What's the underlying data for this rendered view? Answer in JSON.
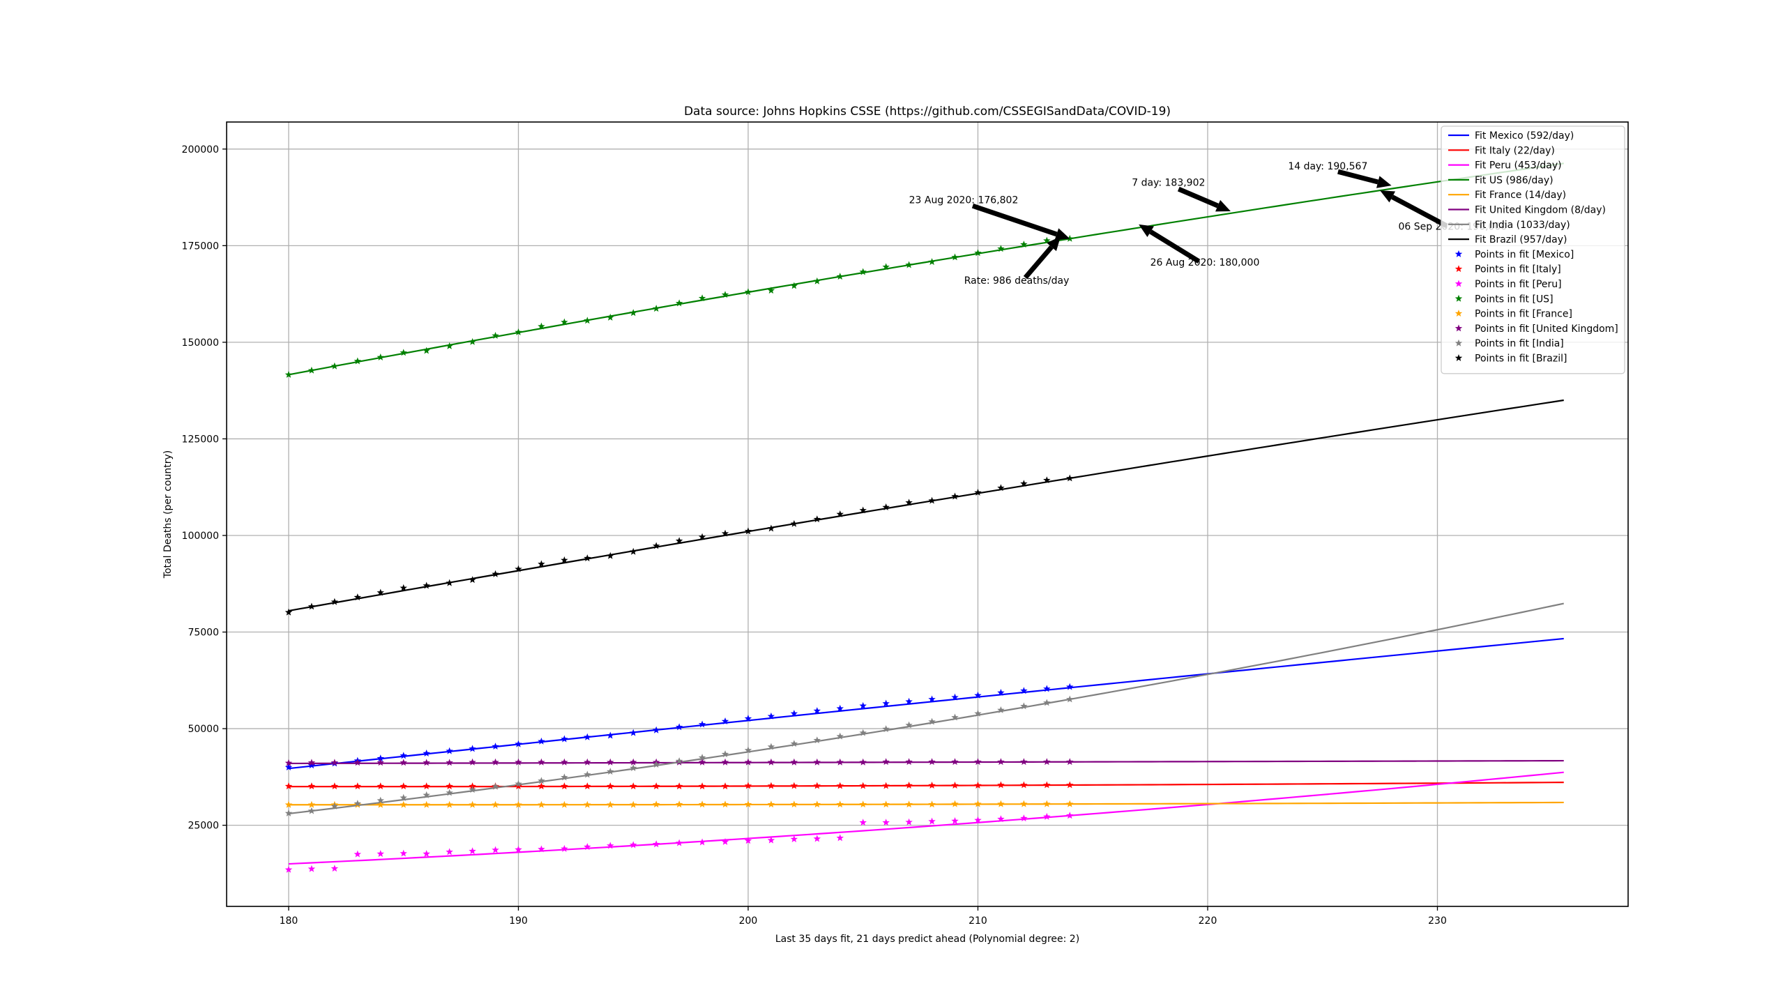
{
  "chart_data": {
    "type": "line",
    "title": "Data source: Johns Hopkins CSSE (https://github.com/CSSEGISandData/COVID-19)",
    "xlabel": "Last 35 days fit, 21 days predict ahead (Polynomial degree: 2)",
    "ylabel": "Total Deaths (per country)",
    "xlim": [
      177.3,
      238.3
    ],
    "ylim": [
      4000,
      207000
    ],
    "x_ticks": [
      180,
      190,
      200,
      210,
      220,
      230
    ],
    "y_ticks": [
      25000,
      50000,
      75000,
      100000,
      125000,
      150000,
      175000,
      200000
    ],
    "grid": true,
    "legend_position": "top-right",
    "fit_range": [
      180,
      235.5
    ],
    "points_x_range": [
      180,
      214
    ],
    "series": [
      {
        "name": "Mexico",
        "fit_label": "Fit Mexico (592/day)",
        "points_label": "Points in fit [Mexico]",
        "color": "#0000ff",
        "fit_start": 39700,
        "fit_mid": 60600,
        "fit_end": 73300,
        "points": [
          40000,
          40500,
          41000,
          41700,
          42300,
          43000,
          43600,
          44200,
          44800,
          45400,
          46000,
          46700,
          47300,
          47800,
          48200,
          48900,
          49600,
          50400,
          51100,
          51900,
          52600,
          53200,
          53900,
          54600,
          55200,
          55900,
          56500,
          57000,
          57600,
          58100,
          58600,
          59300,
          59800,
          60300,
          60800
        ]
      },
      {
        "name": "Italy",
        "fit_label": "Fit Italy (22/day)",
        "points_label": "Points in fit [Italy]",
        "color": "#ff0000",
        "fit_start": 35000,
        "fit_mid": 35400,
        "fit_end": 36100,
        "points": [
          35100,
          35100,
          35100,
          35100,
          35100,
          35100,
          35100,
          35100,
          35100,
          35100,
          35100,
          35100,
          35100,
          35100,
          35100,
          35100,
          35100,
          35100,
          35100,
          35100,
          35200,
          35200,
          35200,
          35200,
          35200,
          35200,
          35200,
          35300,
          35300,
          35300,
          35300,
          35400,
          35400,
          35400,
          35400
        ]
      },
      {
        "name": "Peru",
        "fit_label": "Fit Peru (453/day)",
        "points_label": "Points in fit [Peru]",
        "color": "#ff00ff",
        "fit_start": 15000,
        "fit_mid": 27500,
        "fit_end": 38700,
        "points": [
          13500,
          13700,
          13800,
          17500,
          17600,
          17700,
          17600,
          18100,
          18300,
          18600,
          18700,
          18800,
          18900,
          19400,
          19700,
          19900,
          20100,
          20400,
          20600,
          20700,
          21000,
          21100,
          21400,
          21500,
          21700,
          25700,
          25700,
          25800,
          26000,
          26100,
          26300,
          26600,
          26800,
          27200,
          27500
        ]
      },
      {
        "name": "US",
        "fit_label": "Fit US (986/day)",
        "points_label": "Points in fit [US]",
        "color": "#008000",
        "fit_start": 141600,
        "fit_mid": 176802,
        "fit_end": 196300,
        "points": [
          141600,
          142700,
          143800,
          145100,
          146100,
          147300,
          147800,
          149000,
          150100,
          151700,
          152600,
          154100,
          155200,
          155600,
          156400,
          157600,
          158700,
          160100,
          161400,
          162300,
          163000,
          163400,
          164600,
          165800,
          167000,
          168200,
          169500,
          170000,
          170800,
          172000,
          173100,
          174200,
          175300,
          176300,
          176802
        ]
      },
      {
        "name": "France",
        "fit_label": "Fit France (14/day)",
        "points_label": "Points in fit [France]",
        "color": "#ffa500",
        "fit_start": 30300,
        "fit_mid": 30500,
        "fit_end": 30900,
        "points": [
          30300,
          30300,
          30300,
          30300,
          30300,
          30300,
          30300,
          30300,
          30300,
          30300,
          30300,
          30300,
          30300,
          30300,
          30300,
          30300,
          30400,
          30400,
          30400,
          30400,
          30400,
          30400,
          30400,
          30400,
          30400,
          30400,
          30400,
          30400,
          30400,
          30500,
          30500,
          30500,
          30500,
          30500,
          30500
        ]
      },
      {
        "name": "United Kingdom",
        "fit_label": "Fit United Kingdom (8/day)",
        "points_label": "Points in fit [United Kingdom]",
        "color": "#800080",
        "fit_start": 41000,
        "fit_mid": 41400,
        "fit_end": 41700,
        "points": [
          41100,
          41200,
          41200,
          41200,
          41200,
          41200,
          41200,
          41200,
          41300,
          41300,
          41300,
          41300,
          41300,
          41300,
          41300,
          41300,
          41300,
          41300,
          41300,
          41300,
          41300,
          41300,
          41300,
          41300,
          41300,
          41300,
          41400,
          41400,
          41400,
          41400,
          41400,
          41400,
          41400,
          41400,
          41400
        ]
      },
      {
        "name": "India",
        "fit_label": "Fit India (1033/day)",
        "points_label": "Points in fit [India]",
        "color": "#808080",
        "fit_start": 28000,
        "fit_mid": 57600,
        "fit_end": 82400,
        "points": [
          28100,
          28700,
          29900,
          30600,
          31400,
          32100,
          32800,
          33400,
          34200,
          35000,
          35700,
          36500,
          37400,
          38100,
          38900,
          39800,
          40700,
          41600,
          42500,
          43400,
          44400,
          45300,
          46100,
          47000,
          48000,
          48900,
          49900,
          50900,
          51800,
          52900,
          53900,
          54800,
          55800,
          56700,
          57600
        ]
      },
      {
        "name": "Brazil",
        "fit_label": "Fit Brazil (957/day)",
        "points_label": "Points in fit [Brazil]",
        "color": "#000000",
        "fit_start": 80500,
        "fit_mid": 114800,
        "fit_end": 135000,
        "points": [
          80100,
          81600,
          82800,
          84000,
          85200,
          86400,
          87000,
          87700,
          88500,
          90000,
          91300,
          92600,
          93600,
          94100,
          94700,
          95800,
          97300,
          98600,
          99600,
          100500,
          101100,
          101800,
          103000,
          104200,
          105500,
          106500,
          107300,
          108500,
          109000,
          110100,
          111100,
          112300,
          113400,
          114300,
          114800
        ]
      }
    ],
    "annotations": [
      {
        "text": "23 Aug 2020: 176,802",
        "target_x": 214,
        "target_y": 176802,
        "text_x": 207,
        "text_y": 186000,
        "anchor": "start",
        "arrow": true
      },
      {
        "text": "Rate: 986 deaths/day",
        "target_x": 213.6,
        "target_y": 177400,
        "text_x": 209.4,
        "text_y": 165100,
        "anchor": "start",
        "arrow": true
      },
      {
        "text": "7 day: 183,902",
        "target_x": 221,
        "target_y": 183902,
        "text_x": 216.7,
        "text_y": 190500,
        "anchor": "start",
        "arrow": true
      },
      {
        "text": "26 Aug 2020: 180,000",
        "target_x": 217,
        "target_y": 180500,
        "text_x": 217.5,
        "text_y": 169800,
        "anchor": "start",
        "arrow": true
      },
      {
        "text": "14 day: 190,567",
        "target_x": 228,
        "target_y": 190567,
        "text_x": 223.5,
        "text_y": 194700,
        "anchor": "start",
        "arrow": true
      },
      {
        "text": "06 Sep 2020: 190,000",
        "target_x": 227.5,
        "target_y": 189300,
        "text_x": 228.3,
        "text_y": 179100,
        "anchor": "start",
        "arrow": true
      }
    ]
  }
}
